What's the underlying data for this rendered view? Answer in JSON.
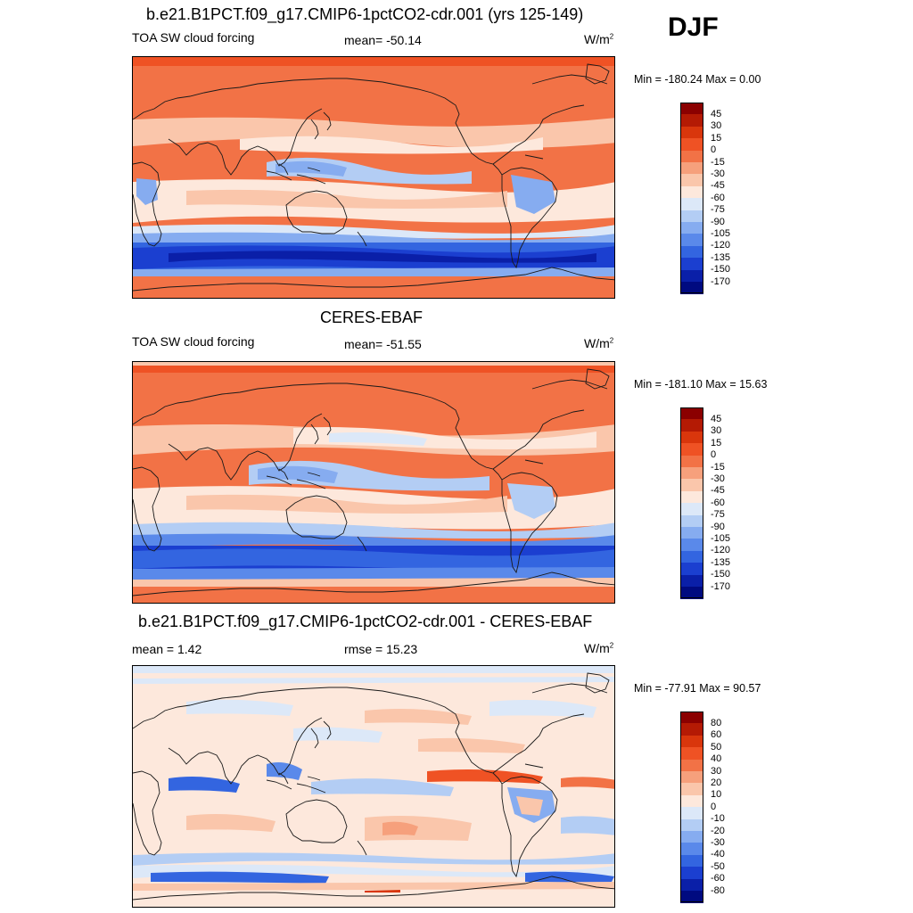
{
  "season": "DJF",
  "panels": [
    {
      "title": "b.e21.B1PCT.f09_g17.CMIP6-1pctCO2-cdr.001 (yrs 125-149)",
      "left_label": "TOA SW cloud forcing",
      "center_label": "mean= -50.14",
      "units": "W/m",
      "units_sup": "2",
      "minmax": "Min = -180.24 Max =   0.00",
      "kind": "abs"
    },
    {
      "title": "CERES-EBAF",
      "left_label": "TOA SW cloud forcing",
      "center_label": "mean= -51.55",
      "units": "W/m",
      "units_sup": "2",
      "minmax": "Min = -181.10 Max =  15.63",
      "kind": "abs"
    },
    {
      "title": "b.e21.B1PCT.f09_g17.CMIP6-1pctCO2-cdr.001 - CERES-EBAF",
      "left_label": "mean =   1.42",
      "center_label": "rmse =  15.23",
      "units": "W/m",
      "units_sup": "2",
      "minmax": "Min = -77.91 Max =  90.57",
      "kind": "diff"
    }
  ],
  "chart_data": [
    {
      "type": "heatmap",
      "title": "b.e21.B1PCT.f09_g17.CMIP6-1pctCO2-cdr.001 (yrs 125-149)",
      "variable": "TOA SW cloud forcing",
      "mean": -50.14,
      "min": -180.24,
      "max": 0.0,
      "colorbar_levels": [
        "45",
        "30",
        "15",
        "0",
        "-15",
        "-30",
        "-45",
        "-60",
        "-75",
        "-90",
        "-105",
        "-120",
        "-135",
        "-150",
        "-170"
      ],
      "colorbar_colors": [
        "#8b0000",
        "#b41a04",
        "#d9360c",
        "#ef5224",
        "#f27246",
        "#f6a07c",
        "#fac6ab",
        "#fde8dc",
        "#dce8f8",
        "#b3cdf4",
        "#86acf0",
        "#5a89ea",
        "#3365e0",
        "#1b3fd0",
        "#0a1fa8",
        "#000a80"
      ]
    },
    {
      "type": "heatmap",
      "title": "CERES-EBAF",
      "variable": "TOA SW cloud forcing",
      "mean": -51.55,
      "min": -181.1,
      "max": 15.63,
      "colorbar_levels": [
        "45",
        "30",
        "15",
        "0",
        "-15",
        "-30",
        "-45",
        "-60",
        "-75",
        "-90",
        "-105",
        "-120",
        "-135",
        "-150",
        "-170"
      ],
      "colorbar_colors": [
        "#8b0000",
        "#b41a04",
        "#d9360c",
        "#ef5224",
        "#f27246",
        "#f6a07c",
        "#fac6ab",
        "#fde8dc",
        "#dce8f8",
        "#b3cdf4",
        "#86acf0",
        "#5a89ea",
        "#3365e0",
        "#1b3fd0",
        "#0a1fa8",
        "#000a80"
      ]
    },
    {
      "type": "heatmap",
      "title": "b.e21.B1PCT.f09_g17.CMIP6-1pctCO2-cdr.001 - CERES-EBAF",
      "mean": 1.42,
      "rmse": 15.23,
      "min": -77.91,
      "max": 90.57,
      "colorbar_levels": [
        "80",
        "60",
        "50",
        "40",
        "30",
        "20",
        "10",
        "0",
        "-10",
        "-20",
        "-30",
        "-40",
        "-50",
        "-60",
        "-80"
      ],
      "colorbar_colors": [
        "#8b0000",
        "#b41a04",
        "#d9360c",
        "#ef5224",
        "#f27246",
        "#f6a07c",
        "#fac6ab",
        "#fde8dc",
        "#dce8f8",
        "#b3cdf4",
        "#86acf0",
        "#5a89ea",
        "#3365e0",
        "#1b3fd0",
        "#0a1fa8",
        "#000a80"
      ]
    }
  ]
}
